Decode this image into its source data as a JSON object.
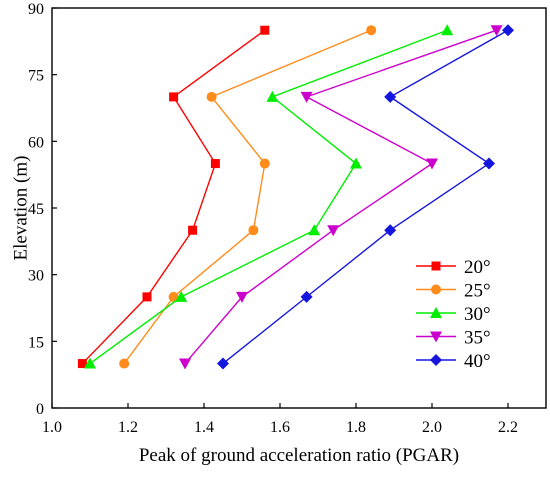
{
  "chart_data": {
    "type": "line",
    "xlabel": "Peak of ground acceleration ratio (PGAR)",
    "ylabel": "Elevation (m)",
    "xlim": [
      1.0,
      2.3
    ],
    "ylim": [
      0,
      90
    ],
    "x_ticks": [
      "1.0",
      "1.2",
      "1.4",
      "1.6",
      "1.8",
      "2.0",
      "2.2"
    ],
    "y_ticks": [
      "0",
      "15",
      "30",
      "45",
      "60",
      "75",
      "90"
    ],
    "grid": false,
    "legend_position": "bottom-right",
    "series": [
      {
        "name": "20°",
        "color": "#ff0000",
        "marker": "square",
        "points": [
          {
            "x": 1.08,
            "y": 10
          },
          {
            "x": 1.25,
            "y": 25
          },
          {
            "x": 1.37,
            "y": 40
          },
          {
            "x": 1.43,
            "y": 55
          },
          {
            "x": 1.32,
            "y": 70
          },
          {
            "x": 1.56,
            "y": 85
          }
        ]
      },
      {
        "name": "25°",
        "color": "#ff8c1a",
        "marker": "circle",
        "points": [
          {
            "x": 1.19,
            "y": 10
          },
          {
            "x": 1.32,
            "y": 25
          },
          {
            "x": 1.53,
            "y": 40
          },
          {
            "x": 1.56,
            "y": 55
          },
          {
            "x": 1.42,
            "y": 70
          },
          {
            "x": 1.84,
            "y": 85
          }
        ]
      },
      {
        "name": "30°",
        "color": "#00ee00",
        "marker": "triangle-up",
        "points": [
          {
            "x": 1.1,
            "y": 10
          },
          {
            "x": 1.34,
            "y": 25
          },
          {
            "x": 1.69,
            "y": 40
          },
          {
            "x": 1.8,
            "y": 55
          },
          {
            "x": 1.58,
            "y": 70
          },
          {
            "x": 2.04,
            "y": 85
          }
        ]
      },
      {
        "name": "35°",
        "color": "#cc00cc",
        "marker": "triangle-down",
        "points": [
          {
            "x": 1.35,
            "y": 10
          },
          {
            "x": 1.5,
            "y": 25
          },
          {
            "x": 1.74,
            "y": 40
          },
          {
            "x": 2.0,
            "y": 55
          },
          {
            "x": 1.67,
            "y": 70
          },
          {
            "x": 2.17,
            "y": 85
          }
        ]
      },
      {
        "name": "40°",
        "color": "#1515e0",
        "marker": "diamond",
        "points": [
          {
            "x": 1.45,
            "y": 10
          },
          {
            "x": 1.67,
            "y": 25
          },
          {
            "x": 1.89,
            "y": 40
          },
          {
            "x": 2.15,
            "y": 55
          },
          {
            "x": 1.89,
            "y": 70
          },
          {
            "x": 2.2,
            "y": 85
          }
        ]
      }
    ]
  }
}
